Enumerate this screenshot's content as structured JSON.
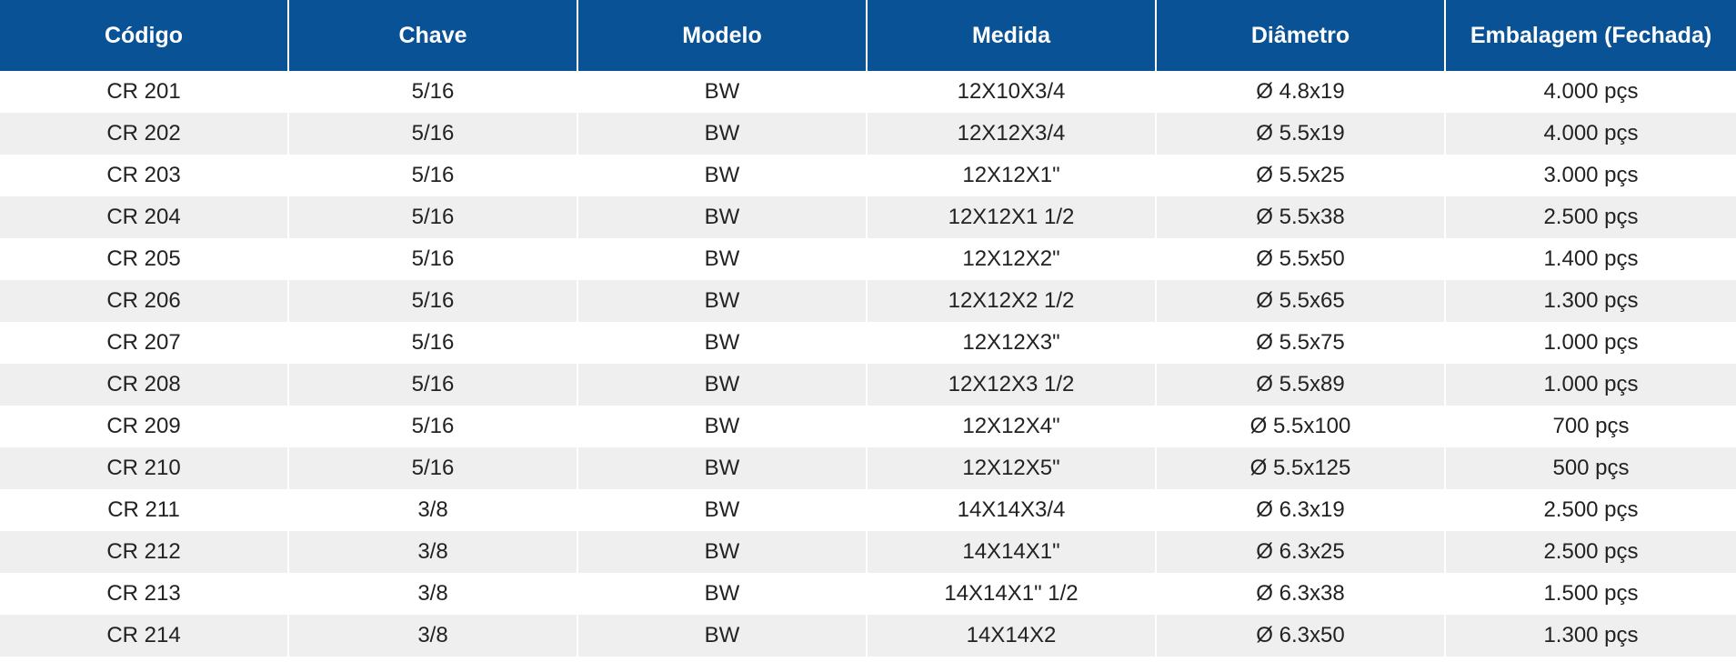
{
  "table": {
    "headers": [
      "Código",
      "Chave",
      "Modelo",
      "Medida",
      "Diâmetro",
      "Embalagem (Fechada)"
    ],
    "rows": [
      [
        "CR 201",
        "5/16",
        "BW",
        "12X10X3/4",
        "Ø 4.8x19",
        "4.000 pçs"
      ],
      [
        "CR 202",
        "5/16",
        "BW",
        "12X12X3/4",
        "Ø 5.5x19",
        "4.000 pçs"
      ],
      [
        "CR 203",
        "5/16",
        "BW",
        "12X12X1\"",
        "Ø 5.5x25",
        "3.000 pçs"
      ],
      [
        "CR 204",
        "5/16",
        "BW",
        "12X12X1 1/2",
        "Ø 5.5x38",
        "2.500 pçs"
      ],
      [
        "CR 205",
        "5/16",
        "BW",
        "12X12X2\"",
        "Ø 5.5x50",
        "1.400 pçs"
      ],
      [
        "CR 206",
        "5/16",
        "BW",
        "12X12X2 1/2",
        "Ø 5.5x65",
        "1.300 pçs"
      ],
      [
        "CR 207",
        "5/16",
        "BW",
        "12X12X3\"",
        "Ø 5.5x75",
        "1.000 pçs"
      ],
      [
        "CR 208",
        "5/16",
        "BW",
        "12X12X3 1/2",
        "Ø 5.5x89",
        "1.000 pçs"
      ],
      [
        "CR 209",
        "5/16",
        "BW",
        "12X12X4\"",
        "Ø 5.5x100",
        "700 pçs"
      ],
      [
        "CR 210",
        "5/16",
        "BW",
        "12X12X5\"",
        "Ø 5.5x125",
        "500 pçs"
      ],
      [
        "CR 211",
        "3/8",
        "BW",
        "14X14X3/4",
        "Ø 6.3x19",
        "2.500 pçs"
      ],
      [
        "CR 212",
        "3/8",
        "BW",
        "14X14X1\"",
        "Ø 6.3x25",
        "2.500 pçs"
      ],
      [
        "CR 213",
        "3/8",
        "BW",
        "14X14X1\" 1/2",
        "Ø 6.3x38",
        "1.500 pçs"
      ],
      [
        "CR 214",
        "3/8",
        "BW",
        "14X14X2",
        "Ø 6.3x50",
        "1.300 pçs"
      ]
    ]
  },
  "colors": {
    "header_background": "#0a5296",
    "header_text": "#ffffff",
    "row_alt_background": "#efefef",
    "cell_text": "#222222"
  }
}
